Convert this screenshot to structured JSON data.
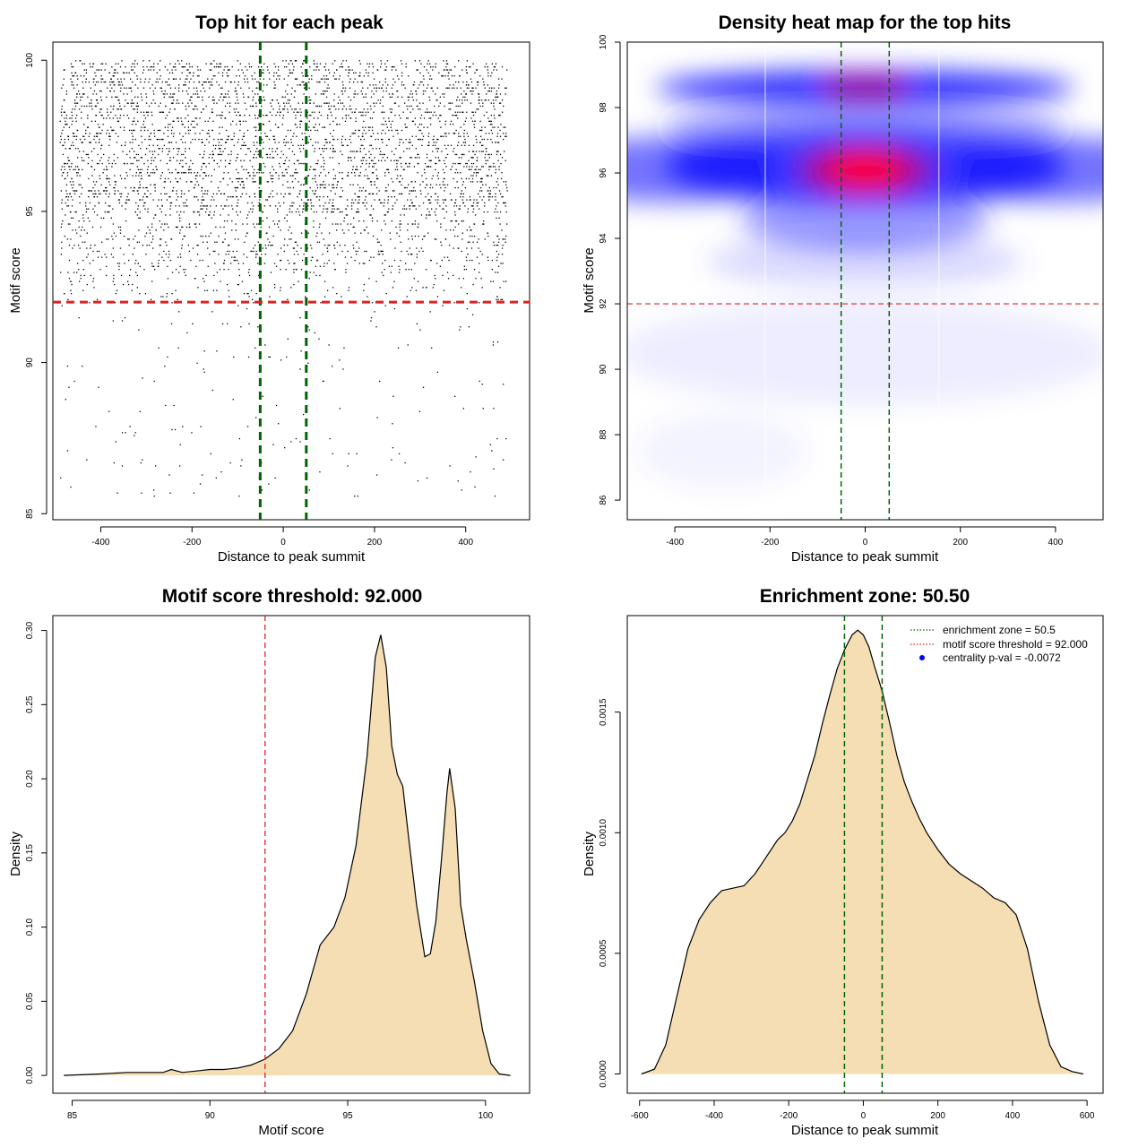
{
  "colors": {
    "threshold_line": "#dd2222",
    "zone_line": "#006400",
    "density_fill": "#f5deb3",
    "heat_low": "#ffffff",
    "heat_mid": "#0000ff",
    "heat_high": "#ff0000",
    "points": "#000000",
    "legend_point": "#0000ff"
  },
  "chart_data": [
    {
      "id": "scatter",
      "type": "scatter",
      "title": "Top hit for each peak",
      "xlabel": "Distance to peak summit",
      "ylabel": "Motif score",
      "xlim": [
        -505,
        540
      ],
      "ylim": [
        84.8,
        100.6
      ],
      "xticks": [
        -400,
        -200,
        0,
        200,
        400
      ],
      "yticks": [
        85,
        90,
        95,
        100
      ],
      "vlines": [
        -50.5,
        50.5
      ],
      "hline": 92,
      "point_bands": [
        {
          "y_min": 95.0,
          "y_max": 100.0,
          "count": 3400
        },
        {
          "y_min": 93.0,
          "y_max": 95.0,
          "count": 700
        },
        {
          "y_min": 92.0,
          "y_max": 93.0,
          "count": 170
        },
        {
          "y_min": 85.5,
          "y_max": 92.0,
          "count": 190
        }
      ]
    },
    {
      "id": "heatmap",
      "type": "heatmap",
      "title": "Density heat map for the top hits",
      "xlabel": "Distance to peak summit",
      "ylabel": "Motif score",
      "xlim": [
        -500,
        500
      ],
      "ylim": [
        85.4,
        100.0
      ],
      "xticks": [
        -400,
        -200,
        0,
        200,
        400
      ],
      "yticks": [
        86,
        88,
        90,
        92,
        94,
        96,
        98,
        100
      ],
      "vlines": [
        -50.5,
        50.5
      ],
      "hline": 92,
      "density_peaks": [
        {
          "x": 0,
          "y": 96.1,
          "intensity": 1.0
        },
        {
          "x": 0,
          "y": 98.6,
          "intensity": 0.75
        }
      ]
    },
    {
      "id": "score_density",
      "type": "area",
      "title": "Motif score threshold: 92.000",
      "xlabel": "Motif score",
      "ylabel": "Density",
      "xlim": [
        84.3,
        101.6
      ],
      "ylim": [
        -0.012,
        0.31
      ],
      "xticks": [
        85,
        90,
        95,
        100
      ],
      "yticks": [
        0.0,
        0.05,
        0.1,
        0.15,
        0.2,
        0.25,
        0.3
      ],
      "ytick_labels": [
        "0.00",
        "0.05",
        "0.10",
        "0.15",
        "0.20",
        "0.25",
        "0.30"
      ],
      "vline": 92,
      "x": [
        84.7,
        86,
        87,
        87.7,
        88.3,
        88.6,
        89,
        89.5,
        90,
        90.5,
        91,
        91.5,
        92,
        92.5,
        93,
        93.5,
        94,
        94.5,
        94.9,
        95.3,
        95.7,
        96,
        96.2,
        96.4,
        96.6,
        96.8,
        97,
        97.2,
        97.5,
        97.8,
        98,
        98.2,
        98.4,
        98.6,
        98.7,
        98.9,
        99.1,
        99.3,
        99.6,
        99.9,
        100.2,
        100.5,
        100.9
      ],
      "y": [
        0.0,
        0.001,
        0.002,
        0.002,
        0.002,
        0.004,
        0.002,
        0.003,
        0.004,
        0.004,
        0.005,
        0.007,
        0.011,
        0.018,
        0.03,
        0.055,
        0.088,
        0.1,
        0.12,
        0.155,
        0.215,
        0.282,
        0.297,
        0.275,
        0.222,
        0.203,
        0.195,
        0.162,
        0.115,
        0.08,
        0.082,
        0.104,
        0.145,
        0.19,
        0.207,
        0.18,
        0.115,
        0.092,
        0.063,
        0.03,
        0.008,
        0.001,
        0.0
      ]
    },
    {
      "id": "distance_density",
      "type": "area",
      "title": "Enrichment zone: 50.50",
      "xlabel": "Distance to peak summit",
      "ylabel": "Density",
      "xlim": [
        -633,
        643
      ],
      "ylim": [
        -8e-05,
        0.0019
      ],
      "xticks": [
        -600,
        -400,
        -200,
        0,
        200,
        400,
        600
      ],
      "yticks": [
        0.0,
        0.0005,
        0.001,
        0.0015
      ],
      "ytick_labels": [
        "0.0000",
        "0.0005",
        "0.0010",
        "0.0015"
      ],
      "vlines": [
        -50.5,
        50.5
      ],
      "x": [
        -595,
        -560,
        -530,
        -500,
        -470,
        -440,
        -410,
        -380,
        -350,
        -320,
        -290,
        -260,
        -230,
        -210,
        -190,
        -170,
        -150,
        -130,
        -110,
        -90,
        -70,
        -50,
        -30,
        -15,
        0,
        15,
        30,
        50,
        70,
        90,
        110,
        130,
        150,
        170,
        200,
        230,
        260,
        290,
        320,
        350,
        380,
        410,
        440,
        470,
        500,
        530,
        560,
        590
      ],
      "y": [
        0.0,
        2e-05,
        0.00012,
        0.00032,
        0.00052,
        0.00064,
        0.00071,
        0.00076,
        0.00077,
        0.00078,
        0.00083,
        0.0009,
        0.00097,
        0.001,
        0.00105,
        0.00112,
        0.00122,
        0.00132,
        0.00145,
        0.00157,
        0.00168,
        0.00176,
        0.00182,
        0.00184,
        0.00182,
        0.00177,
        0.00169,
        0.00159,
        0.00146,
        0.00132,
        0.00121,
        0.00113,
        0.00106,
        0.001,
        0.00093,
        0.00087,
        0.00083,
        0.0008,
        0.00077,
        0.00073,
        0.00071,
        0.00066,
        0.00052,
        0.0003,
        0.00012,
        3e-05,
        1e-05,
        0.0
      ],
      "legend": {
        "position": "top-right",
        "entries": [
          {
            "label": "enrichment zone = 50.5",
            "symbol": "dotted-line",
            "color": "#006400"
          },
          {
            "label": "motif score threshold = 92.000",
            "symbol": "dotted-line",
            "color": "#dd2222"
          },
          {
            "label": "centrality p-val = -0.0072",
            "symbol": "point",
            "color": "#0000ff"
          }
        ]
      }
    }
  ]
}
